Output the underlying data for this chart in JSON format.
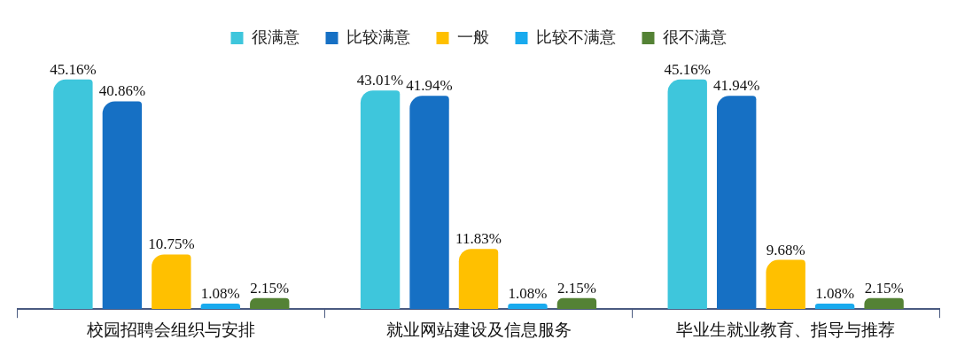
{
  "chart_data": {
    "type": "bar",
    "categories": [
      "校园招聘会组织与安排",
      "就业网站建设及信息服务",
      "毕业生就业教育、指导与推荐"
    ],
    "series": [
      {
        "name": "很满意",
        "color": "#3ec6dc",
        "values": [
          45.16,
          43.01,
          45.16
        ],
        "value_labels": [
          "45.16%",
          "43.01%",
          "45.16%"
        ]
      },
      {
        "name": "比较满意",
        "color": "#1670c4",
        "values": [
          40.86,
          41.94,
          41.94
        ],
        "value_labels": [
          "40.86%",
          "41.94%",
          "41.94%"
        ]
      },
      {
        "name": "一般",
        "color": "#ffc000",
        "values": [
          10.75,
          11.83,
          9.68
        ],
        "value_labels": [
          "10.75%",
          "11.83%",
          "9.68%"
        ]
      },
      {
        "name": "比较不满意",
        "color": "#19aaee",
        "values": [
          1.08,
          1.08,
          1.08
        ],
        "value_labels": [
          "1.08%",
          "1.08%",
          "1.08%"
        ]
      },
      {
        "name": "很不满意",
        "color": "#548235",
        "values": [
          2.15,
          2.15,
          2.15
        ],
        "value_labels": [
          "2.15%",
          "2.15%",
          "2.15%"
        ]
      }
    ],
    "legend": "top",
    "grid": false
  }
}
